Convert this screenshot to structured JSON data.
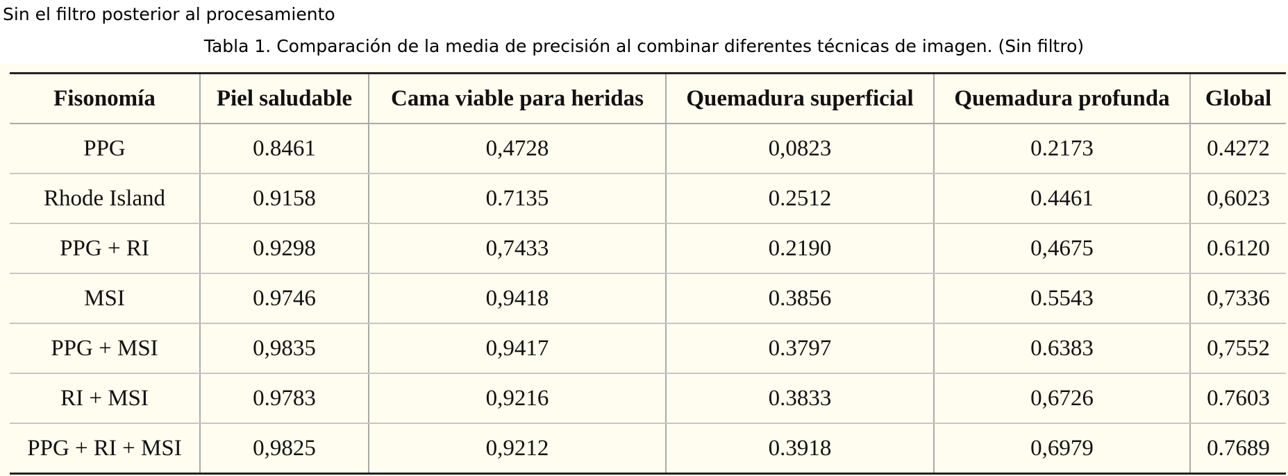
{
  "heading": "Sin el filtro posterior al procesamiento",
  "caption": "Tabla 1. Comparación de la media de precisión al combinar diferentes técnicas de imagen. (Sin filtro)",
  "table": {
    "headers": [
      "Fisonomía",
      "Piel saludable",
      "Cama viable para heridas",
      "Quemadura superficial",
      "Quemadura profunda",
      "Global"
    ],
    "rows": [
      [
        "PPG",
        "0.8461",
        "0,4728",
        "0,0823",
        "0.2173",
        "0.4272"
      ],
      [
        "Rhode Island",
        "0.9158",
        "0.7135",
        "0.2512",
        "0.4461",
        "0,6023"
      ],
      [
        "PPG + RI",
        "0.9298",
        "0,7433",
        "0.2190",
        "0,4675",
        "0.6120"
      ],
      [
        "MSI",
        "0.9746",
        "0,9418",
        "0.3856",
        "0.5543",
        "0,7336"
      ],
      [
        "PPG + MSI",
        "0,9835",
        "0,9417",
        "0.3797",
        "0.6383",
        "0,7552"
      ],
      [
        "RI + MSI",
        "0.9783",
        "0,9216",
        "0.3833",
        "0,6726",
        "0.7603"
      ],
      [
        "PPG + RI + MSI",
        "0,9825",
        "0,9212",
        "0.3918",
        "0,6979",
        "0.7689"
      ]
    ]
  },
  "colors": {
    "table_background": "#fffdef",
    "grid_line": "#a9a9a9",
    "rule_line": "#222222"
  }
}
